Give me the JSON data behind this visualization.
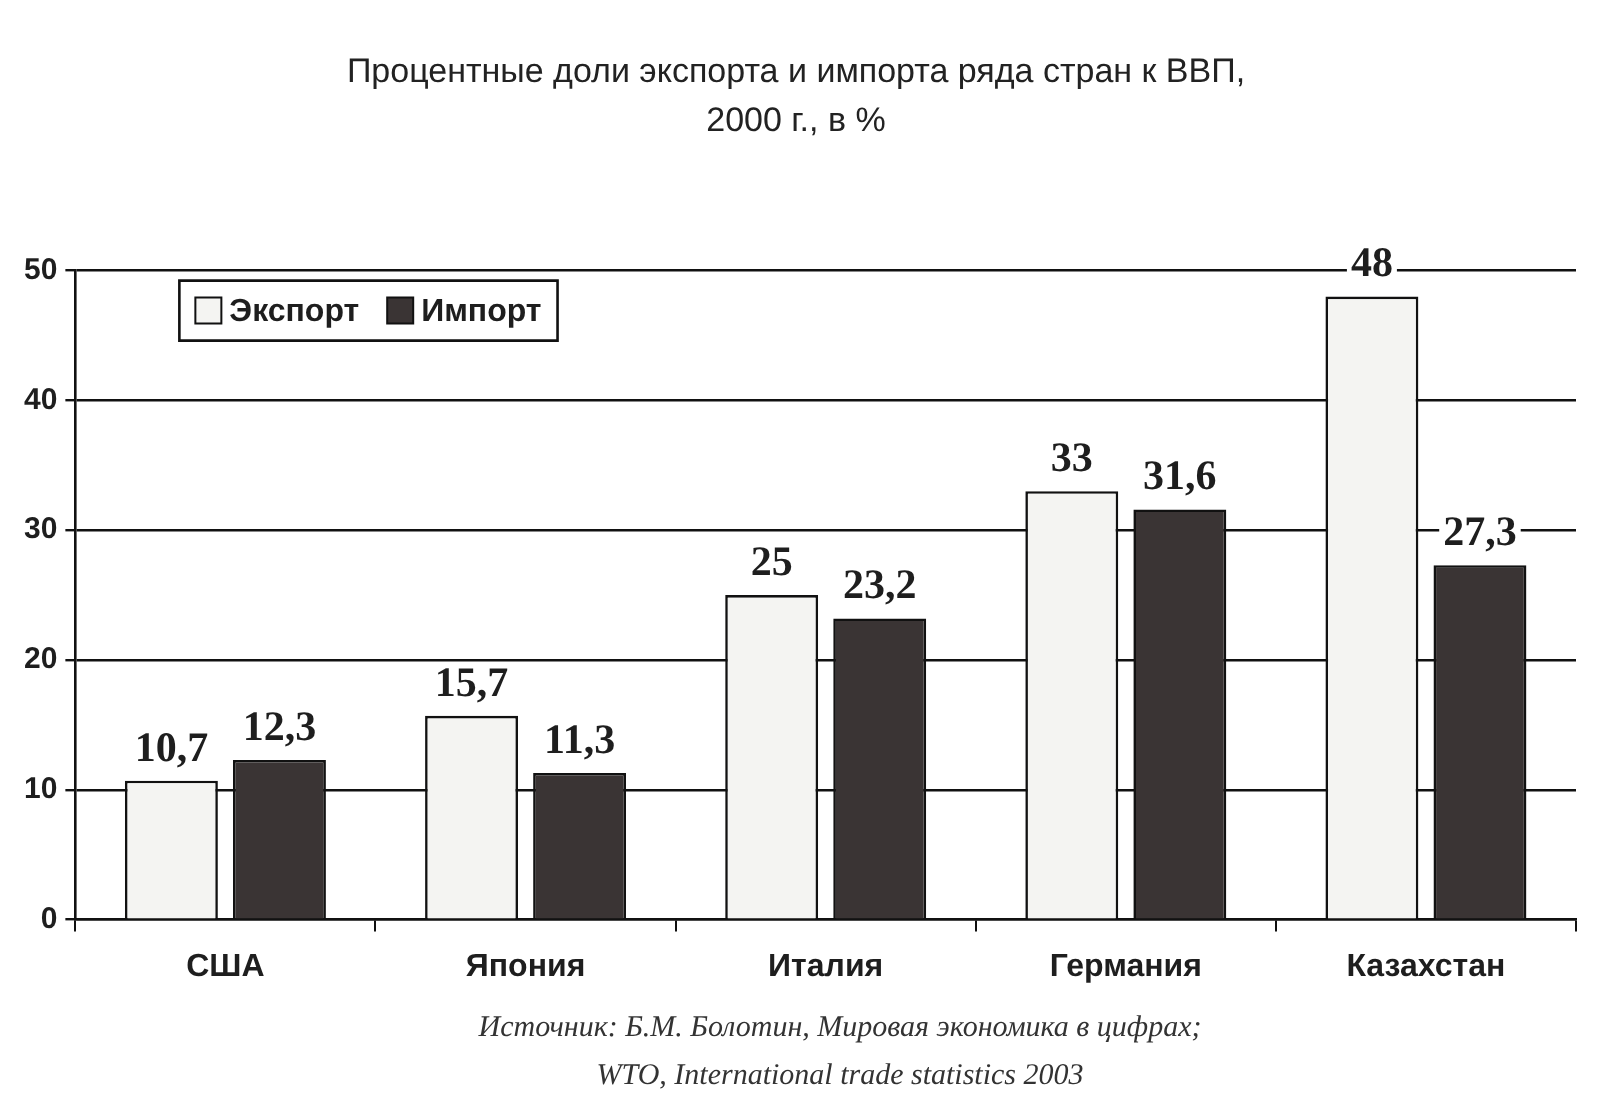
{
  "chart_data": {
    "type": "bar",
    "title": "Процентные доли экспорта и импорта ряда стран к ВВП,\n2000 г., в %",
    "categories": [
      "США",
      "Япония",
      "Италия",
      "Германия",
      "Казахстан"
    ],
    "series": [
      {
        "name": "Экспорт",
        "color": "#f4f4f2",
        "values": [
          10.7,
          15.7,
          25,
          33,
          48
        ],
        "value_labels": [
          "10,7",
          "15,7",
          "25",
          "33",
          "48"
        ]
      },
      {
        "name": "Импорт",
        "color": "#3a3434",
        "values": [
          12.3,
          11.3,
          23.2,
          31.6,
          27.3
        ],
        "value_labels": [
          "12,3",
          "11,3",
          "23,2",
          "31,6",
          "27,3"
        ]
      }
    ],
    "ylim": [
      0,
      50
    ],
    "yticks": [
      0,
      10,
      20,
      30,
      40,
      50
    ],
    "grid": "y",
    "legend": "top left",
    "annotations": [
      "Источник: Б.М. Болотин, Мировая экономика в цифрах;",
      "WTO, International trade statistics 2003"
    ]
  }
}
